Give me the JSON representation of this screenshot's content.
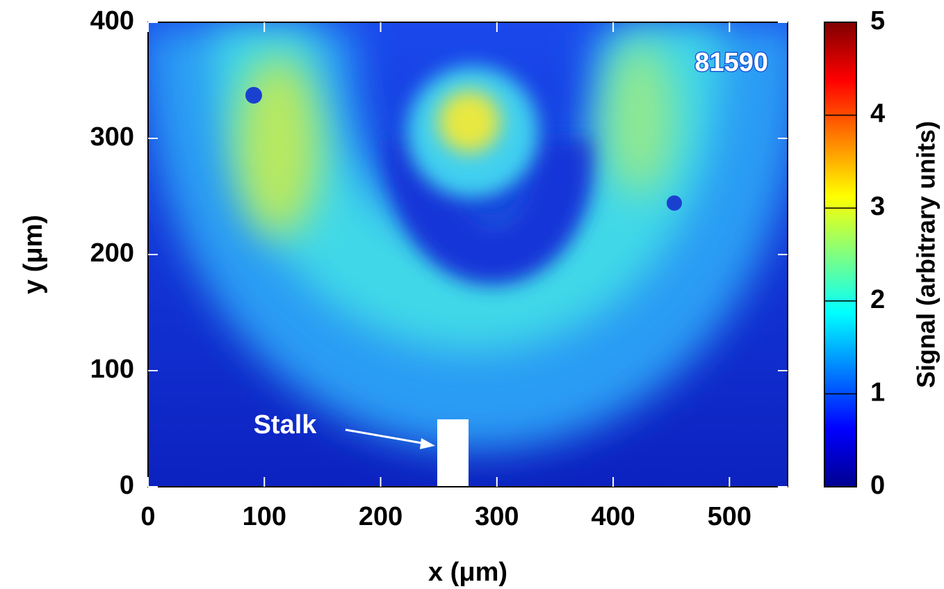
{
  "chart_data": {
    "type": "heatmap",
    "x_label": "x (μm)",
    "y_label": "y (μm)",
    "xlim": [
      0,
      550
    ],
    "xticks": [
      0,
      100,
      200,
      300,
      400,
      500
    ],
    "ylim": [
      0,
      400
    ],
    "yticks": [
      0,
      100,
      200,
      300,
      400
    ],
    "colorbar": {
      "label": "Signal (arbitrary units)",
      "colormap": "jet",
      "lim": [
        0,
        5
      ],
      "ticks": [
        0,
        1,
        2,
        3,
        4,
        5
      ]
    },
    "annotations": [
      "Stalk",
      "81590"
    ]
  }
}
